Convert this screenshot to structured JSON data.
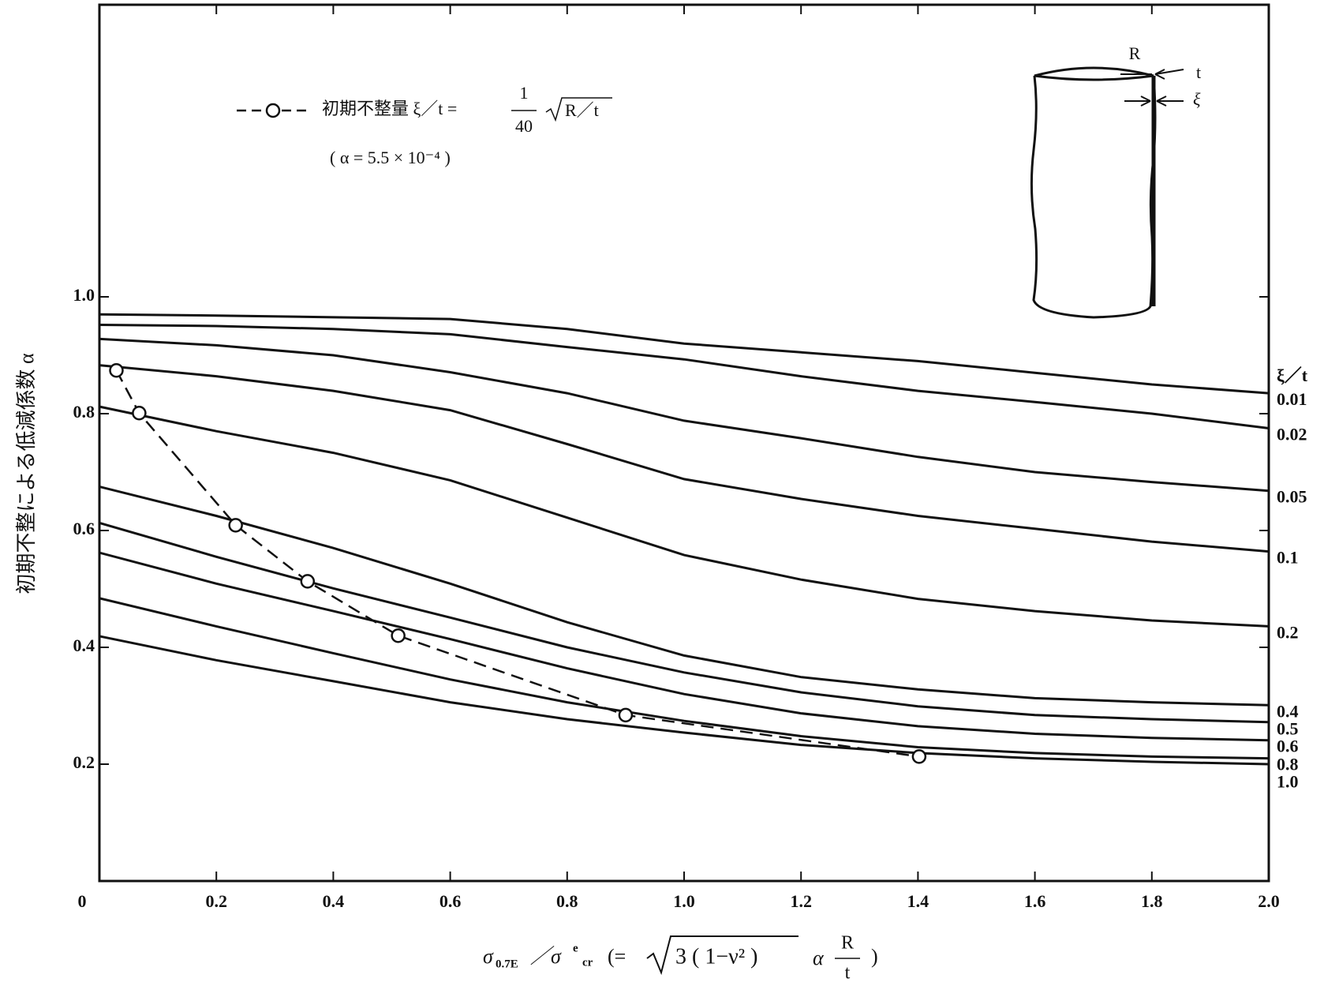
{
  "chart_data": {
    "type": "line",
    "y_label": "初期不整による低減係数 α",
    "x_label": {
      "lhs": "σ",
      "lhs_sub": "0.7E",
      "sep": "／σ",
      "sup": "e",
      "sub": "cr",
      "open": "(=",
      "root": "3 ( 1−ν² )",
      "alpha": "α",
      "num": "R",
      "den": "t",
      "close": ")"
    },
    "xlim": [
      0,
      2
    ],
    "ylim": [
      0,
      1.5
    ],
    "xticks": [
      0,
      0.2,
      0.4,
      0.6,
      0.8,
      {
        "value": 1,
        "label": "1.0"
      },
      1.2,
      1.4,
      1.6,
      1.8,
      {
        "value": 2,
        "label": "2.0"
      }
    ],
    "yticks": [
      0.2,
      0.4,
      0.6,
      0.8,
      {
        "value": 1,
        "label": "1.0"
      }
    ],
    "grid": false,
    "legend_title": "ξ／t",
    "x": [
      0,
      0.2,
      0.4,
      0.6,
      0.8,
      1,
      1.2,
      1.4,
      1.6,
      1.8,
      2
    ],
    "series": [
      {
        "name": "0.01",
        "color": "#111111",
        "values": [
          0.97,
          0.968,
          0.965,
          0.962,
          0.945,
          0.92,
          0.905,
          0.89,
          0.87,
          0.85,
          0.835
        ]
      },
      {
        "name": "0.02",
        "color": "#111111",
        "values": [
          0.952,
          0.95,
          0.945,
          0.936,
          0.914,
          0.893,
          0.864,
          0.839,
          0.82,
          0.8,
          0.775
        ]
      },
      {
        "name": "0.05",
        "color": "#111111",
        "values": [
          0.928,
          0.917,
          0.9,
          0.871,
          0.835,
          0.788,
          0.758,
          0.726,
          0.7,
          0.683,
          0.668
        ]
      },
      {
        "name": "0.1",
        "color": "#111111",
        "values": [
          0.883,
          0.864,
          0.839,
          0.806,
          0.748,
          0.688,
          0.654,
          0.625,
          0.603,
          0.581,
          0.564
        ]
      },
      {
        "name": "0.2",
        "color": "#111111",
        "values": [
          0.812,
          0.77,
          0.733,
          0.686,
          0.622,
          0.558,
          0.516,
          0.483,
          0.462,
          0.446,
          0.436
        ]
      },
      {
        "name": "0.4",
        "color": "#111111",
        "values": [
          0.675,
          0.625,
          0.57,
          0.509,
          0.443,
          0.386,
          0.349,
          0.328,
          0.313,
          0.306,
          0.301
        ]
      },
      {
        "name": "0.5",
        "color": "#111111",
        "values": [
          0.613,
          0.555,
          0.501,
          0.451,
          0.4,
          0.357,
          0.323,
          0.299,
          0.284,
          0.277,
          0.272
        ]
      },
      {
        "name": "0.6",
        "color": "#111111",
        "values": [
          0.562,
          0.509,
          0.462,
          0.414,
          0.364,
          0.32,
          0.287,
          0.265,
          0.252,
          0.245,
          0.241
        ]
      },
      {
        "name": "0.8",
        "color": "#111111",
        "values": [
          0.484,
          0.436,
          0.39,
          0.345,
          0.306,
          0.274,
          0.248,
          0.229,
          0.219,
          0.213,
          0.21
        ]
      },
      {
        "name": "1.0",
        "color": "#111111",
        "values": [
          0.419,
          0.378,
          0.342,
          0.306,
          0.277,
          0.254,
          0.233,
          0.219,
          0.21,
          0.204,
          0.2
        ]
      },
      {
        "name": "初期不整量 ξ／t =",
        "color": "#111111",
        "style": "dashed",
        "marker": "circle",
        "x": [
          0.029,
          0.068,
          0.233,
          0.356,
          0.511,
          0.9,
          1.402
        ],
        "values": [
          0.874,
          0.801,
          0.609,
          0.513,
          0.42,
          0.284,
          0.213
        ]
      }
    ],
    "legend_fraction": {
      "numerator": "1",
      "denominator": "40"
    },
    "legend_root": "R／t",
    "legend_note": "( α = 5.5 × 10⁻⁴ )",
    "inset": {
      "r": "R",
      "t": "t",
      "xi": "ξ"
    }
  }
}
